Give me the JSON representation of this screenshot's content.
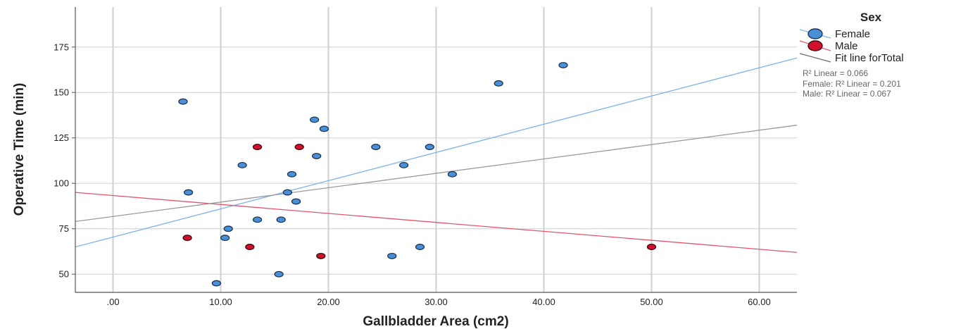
{
  "chart_data": {
    "type": "scatter",
    "xlabel": "Gallbladder Area (cm2)",
    "ylabel": "Operative Time (min)",
    "xlim": [
      -3.5,
      63.5
    ],
    "ylim": [
      40,
      197
    ],
    "x_ticks": [
      {
        "value": 0,
        "label": ".00"
      },
      {
        "value": 10,
        "label": "10.00"
      },
      {
        "value": 20,
        "label": "20.00"
      },
      {
        "value": 30,
        "label": "30.00"
      },
      {
        "value": 40,
        "label": "40.00"
      },
      {
        "value": 50,
        "label": "50.00"
      },
      {
        "value": 60,
        "label": "60.00"
      }
    ],
    "y_ticks": [
      {
        "value": 50,
        "label": "50"
      },
      {
        "value": 75,
        "label": "75"
      },
      {
        "value": 100,
        "label": "100"
      },
      {
        "value": 125,
        "label": "125"
      },
      {
        "value": 150,
        "label": "150"
      },
      {
        "value": 175,
        "label": "175"
      }
    ],
    "grid": true,
    "legend": {
      "title": "Sex",
      "position": "top-right",
      "entries": [
        "Female",
        "Male",
        "Fit line forTotal"
      ],
      "r2_notes": [
        "R² Linear = 0.066",
        "Female: R² Linear = 0.201",
        "Male: R² Linear = 0.067"
      ]
    },
    "series": [
      {
        "name": "Female",
        "color": "#4a90d9",
        "points": [
          [
            6.5,
            145
          ],
          [
            7.0,
            95
          ],
          [
            9.6,
            45
          ],
          [
            10.4,
            70
          ],
          [
            10.7,
            75
          ],
          [
            12.0,
            110
          ],
          [
            13.4,
            80
          ],
          [
            15.4,
            50
          ],
          [
            15.6,
            80
          ],
          [
            16.2,
            95
          ],
          [
            16.6,
            105
          ],
          [
            17.0,
            90
          ],
          [
            18.7,
            135
          ],
          [
            18.9,
            115
          ],
          [
            19.6,
            130
          ],
          [
            24.4,
            120
          ],
          [
            25.9,
            60
          ],
          [
            27.0,
            110
          ],
          [
            28.5,
            65
          ],
          [
            29.4,
            120
          ],
          [
            31.5,
            105
          ],
          [
            35.8,
            155
          ],
          [
            41.8,
            165
          ]
        ]
      },
      {
        "name": "Male",
        "color": "#d0102c",
        "points": [
          [
            6.9,
            70
          ],
          [
            12.7,
            65
          ],
          [
            13.4,
            120
          ],
          [
            17.3,
            120
          ],
          [
            19.3,
            60
          ],
          [
            50.0,
            65
          ]
        ]
      }
    ],
    "fit_lines": [
      {
        "name": "Female",
        "color": "#7fb4ea",
        "from": [
          -3.5,
          65
        ],
        "to": [
          63.5,
          169
        ]
      },
      {
        "name": "Male",
        "color": "#e0566e",
        "from": [
          -3.5,
          95
        ],
        "to": [
          63.5,
          62
        ]
      },
      {
        "name": "Fit line forTotal",
        "color": "#9a9a9a",
        "from": [
          -3.5,
          79
        ],
        "to": [
          63.5,
          132
        ]
      }
    ]
  }
}
